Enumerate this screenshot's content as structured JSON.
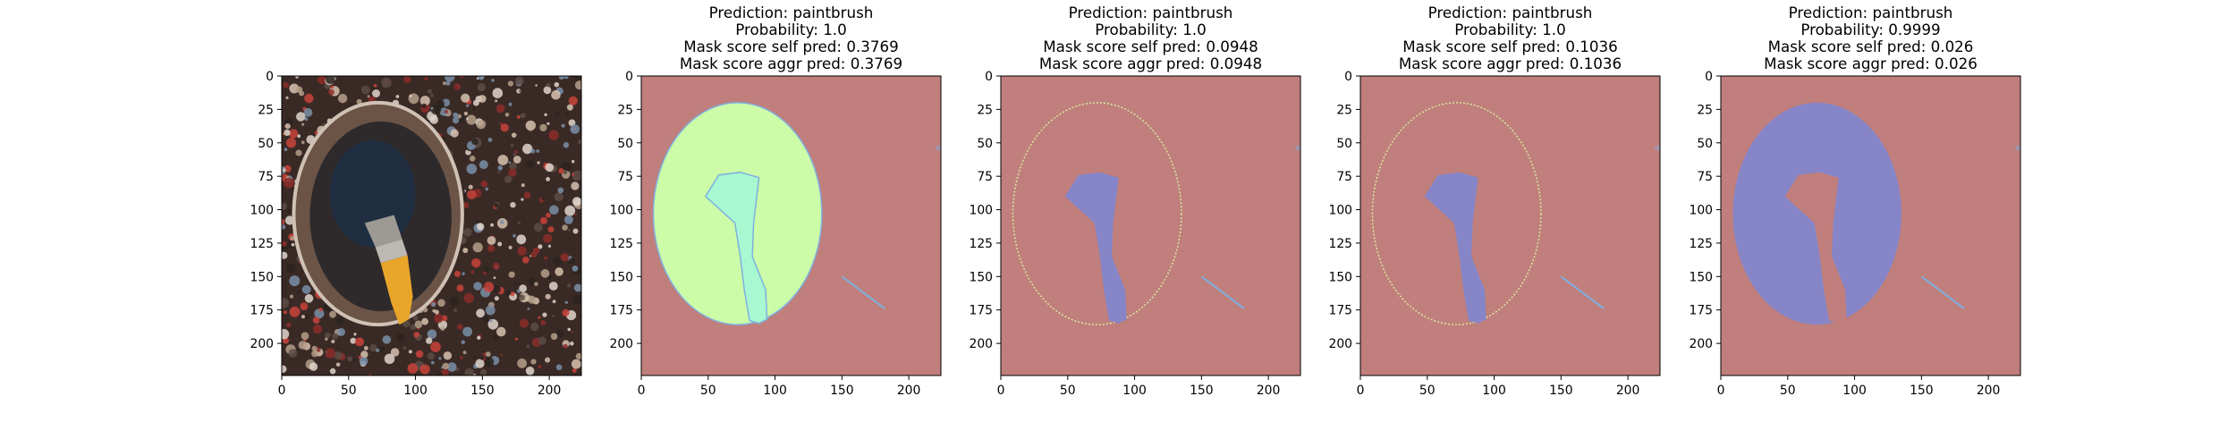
{
  "chart_data": {
    "type": "image-grid",
    "xlim": [
      0,
      224
    ],
    "ylim": [
      224,
      0
    ],
    "xticks": [
      0,
      50,
      100,
      150,
      200
    ],
    "yticks": [
      0,
      25,
      50,
      75,
      100,
      125,
      150,
      175,
      200
    ],
    "colors": {
      "background_mask": "#c07f7c",
      "aggregate_region": "#ccfca8",
      "brush_region_aggr": "#a8f8d2",
      "brush_region": "#8685c8",
      "ellipse_fill_last": "#8685c8",
      "outline": "#7fb0e0",
      "photo_bg": "#3a2a26"
    },
    "panels": [
      {
        "kind": "input-image",
        "title_lines": []
      },
      {
        "kind": "mask",
        "variant": "aggregate",
        "title_lines": [
          "Prediction: paintbrush",
          "Probability: 1.0",
          "Mask score self pred: 0.3769",
          "Mask score aggr pred: 0.3769"
        ]
      },
      {
        "kind": "mask",
        "variant": "brush",
        "title_lines": [
          "Prediction: paintbrush",
          "Probability: 1.0",
          "Mask score self pred: 0.0948",
          "Mask score aggr pred: 0.0948"
        ]
      },
      {
        "kind": "mask",
        "variant": "brush",
        "title_lines": [
          "Prediction: paintbrush",
          "Probability: 1.0",
          "Mask score self pred: 0.1036",
          "Mask score aggr pred: 0.1036"
        ]
      },
      {
        "kind": "mask",
        "variant": "ellipse",
        "title_lines": [
          "Prediction: paintbrush",
          "Probability: 0.9999",
          "Mask score self pred: 0.026",
          "Mask score aggr pred: 0.026"
        ]
      }
    ]
  }
}
